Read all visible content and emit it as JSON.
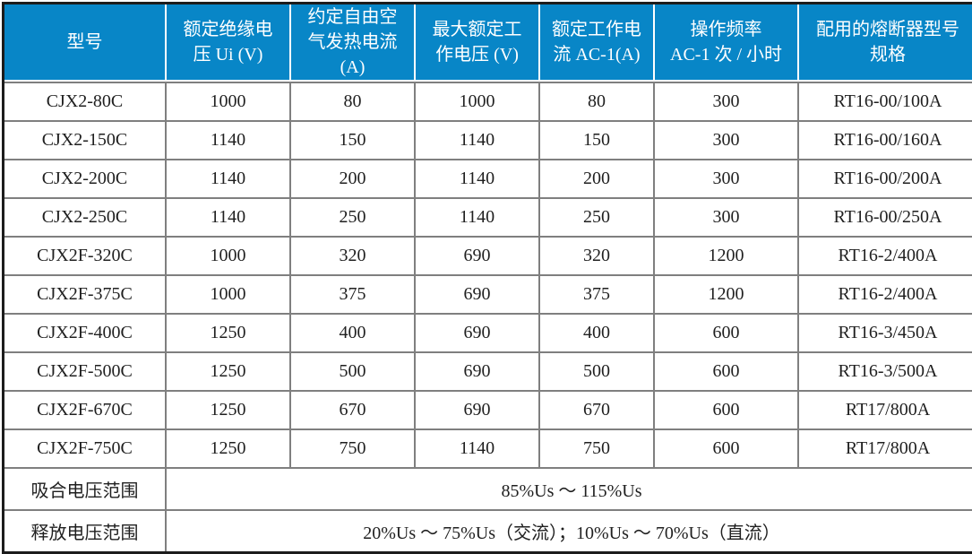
{
  "colors": {
    "header_bg": "#0886C7",
    "header_text": "#FFFFFF",
    "grid_line": "#7F7F7F",
    "outer_border": "#1C1C1C",
    "body_text": "#1F1F1F",
    "row_bg": "#FFFFFF"
  },
  "table": {
    "columns": [
      "型号",
      "额定绝缘电\n压 Ui (V)",
      "约定自由空\n气发热电流\n(A)",
      "最大额定工\n作电压 (V)",
      "额定工作电\n流 AC-1(A)",
      "操作频率\nAC-1 次 / 小时",
      "配用的熔断器型号\n规格"
    ],
    "rows": [
      [
        "CJX2-80C",
        "1000",
        "80",
        "1000",
        "80",
        "300",
        "RT16-00/100A"
      ],
      [
        "CJX2-150C",
        "1140",
        "150",
        "1140",
        "150",
        "300",
        "RT16-00/160A"
      ],
      [
        "CJX2-200C",
        "1140",
        "200",
        "1140",
        "200",
        "300",
        "RT16-00/200A"
      ],
      [
        "CJX2-250C",
        "1140",
        "250",
        "1140",
        "250",
        "300",
        "RT16-00/250A"
      ],
      [
        "CJX2F-320C",
        "1000",
        "320",
        "690",
        "320",
        "1200",
        "RT16-2/400A"
      ],
      [
        "CJX2F-375C",
        "1000",
        "375",
        "690",
        "375",
        "1200",
        "RT16-2/400A"
      ],
      [
        "CJX2F-400C",
        "1250",
        "400",
        "690",
        "400",
        "600",
        "RT16-3/450A"
      ],
      [
        "CJX2F-500C",
        "1250",
        "500",
        "690",
        "500",
        "600",
        "RT16-3/500A"
      ],
      [
        "CJX2F-670C",
        "1250",
        "670",
        "690",
        "670",
        "600",
        "RT17/800A"
      ],
      [
        "CJX2F-750C",
        "1250",
        "750",
        "1140",
        "750",
        "600",
        "RT17/800A"
      ]
    ],
    "footer_rows": [
      {
        "label": "吸合电压范围",
        "value": "85%Us ～ 115%Us"
      },
      {
        "label": "释放电压范围",
        "value": "20%Us ～ 75%Us（交流）；10%Us ～ 70%Us（直流）"
      }
    ]
  }
}
